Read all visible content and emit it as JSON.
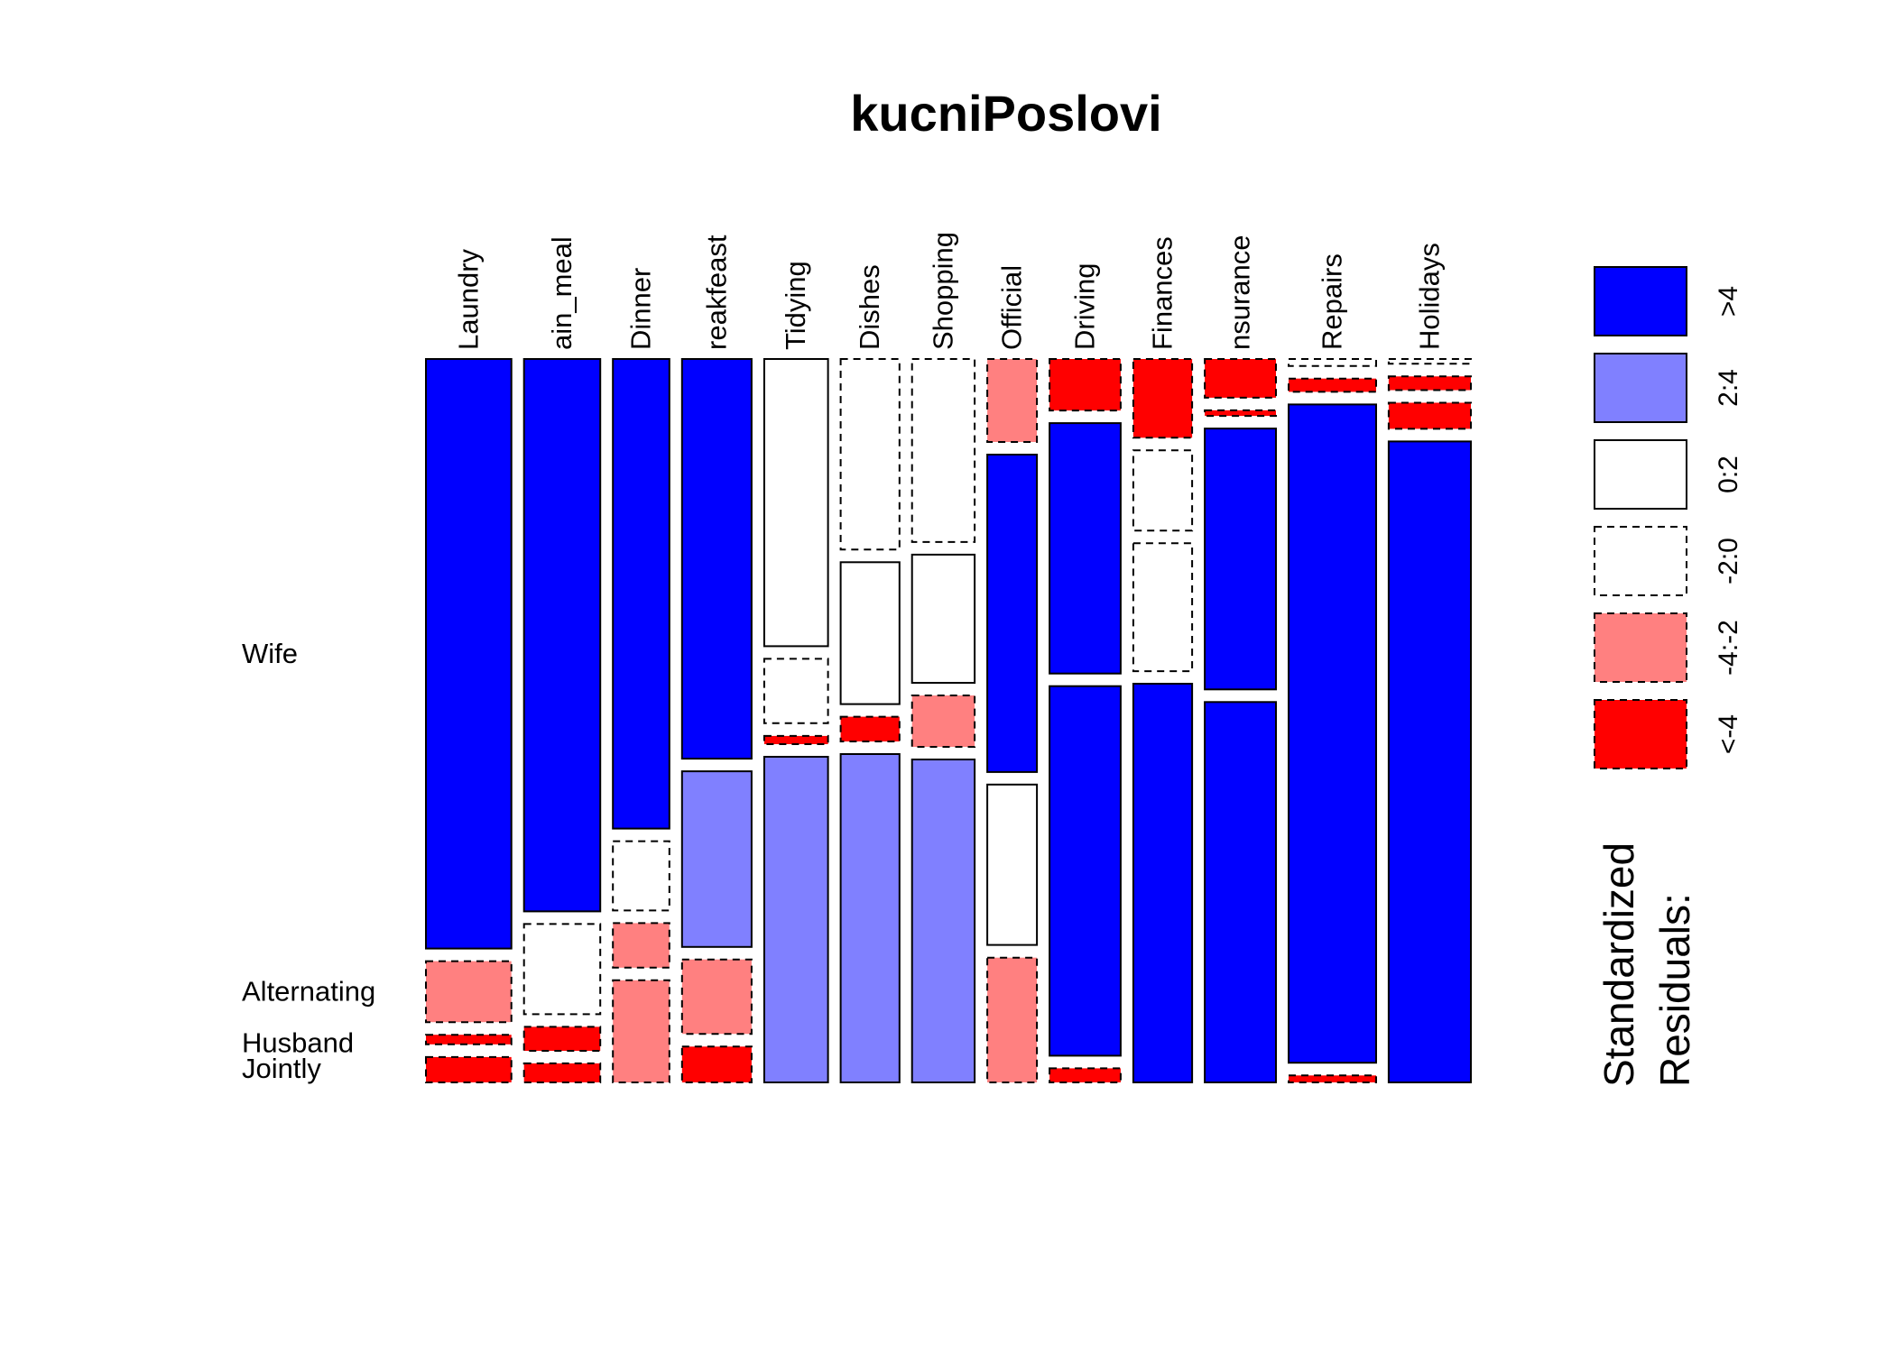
{
  "colors": {
    "gt4": "#0000ff",
    "2:4": "#8080ff",
    "0:2": "#ffffff",
    "-2:0": "#ffffff",
    "-4:-2": "#ff8080",
    "lt-4": "#ff0000"
  },
  "chart_data": {
    "type": "mosaic",
    "title": "kucniPoslovi",
    "legend": {
      "title_lines": [
        "Standardized",
        "Residuals:"
      ],
      "levels": [
        {
          "key": "gt4",
          "label": ">4",
          "dashed": false
        },
        {
          "key": "2:4",
          "label": "2:4",
          "dashed": false
        },
        {
          "key": "0:2",
          "label": "0:2",
          "dashed": false
        },
        {
          "key": "-2:0",
          "label": "-2:0",
          "dashed": true
        },
        {
          "key": "-4:-2",
          "label": "-4:-2",
          "dashed": true
        },
        {
          "key": "lt-4",
          "label": "<-4",
          "dashed": true
        }
      ],
      "placement": "right"
    },
    "row_labels": [
      "Wife",
      "Alternating",
      "Husband",
      "Jointly"
    ],
    "columns": [
      {
        "label": "Laundry",
        "display": "Laundry",
        "width_share": 0.0738,
        "cells": [
          {
            "row": "Wife",
            "share": 0.86,
            "level": "gt4"
          },
          {
            "row": "Alternating",
            "share": 0.089,
            "level": "-4:-2"
          },
          {
            "row": "Husband",
            "share": 0.014,
            "level": "lt-4"
          },
          {
            "row": "Jointly",
            "share": 0.037,
            "level": "lt-4"
          }
        ]
      },
      {
        "label": "Main_meal",
        "display": "ain_meal",
        "width_share": 0.0659,
        "cells": [
          {
            "row": "Wife",
            "share": 0.784,
            "level": "gt4"
          },
          {
            "row": "Alternating",
            "share": 0.128,
            "level": "-2:0"
          },
          {
            "row": "Husband",
            "share": 0.034,
            "level": "lt-4"
          },
          {
            "row": "Jointly",
            "share": 0.027,
            "level": "lt-4"
          }
        ]
      },
      {
        "label": "Dinner",
        "display": "Dinner",
        "width_share": 0.0488,
        "cells": [
          {
            "row": "Wife",
            "share": 0.685,
            "level": "gt4"
          },
          {
            "row": "Alternating",
            "share": 0.101,
            "level": "-2:0"
          },
          {
            "row": "Husband",
            "share": 0.065,
            "level": "-4:-2"
          },
          {
            "row": "Jointly",
            "share": 0.149,
            "level": "-4:-2"
          }
        ]
      },
      {
        "label": "Breakfeast",
        "display": "reakfeast",
        "width_share": 0.0601,
        "cells": [
          {
            "row": "Wife",
            "share": 0.569,
            "level": "gt4"
          },
          {
            "row": "Alternating",
            "share": 0.25,
            "level": "2:4"
          },
          {
            "row": "Husband",
            "share": 0.106,
            "level": "-4:-2"
          },
          {
            "row": "Jointly",
            "share": 0.051,
            "level": "lt-4"
          }
        ]
      },
      {
        "label": "Tidying",
        "display": "Tidying",
        "width_share": 0.0551,
        "cells": [
          {
            "row": "Wife",
            "share": 0.419,
            "level": "0:2"
          },
          {
            "row": "Alternating",
            "share": 0.094,
            "level": "-2:0"
          },
          {
            "row": "Husband",
            "share": 0.012,
            "level": "lt-4"
          },
          {
            "row": "Jointly",
            "share": 0.475,
            "level": "2:4"
          }
        ]
      },
      {
        "label": "Dishes",
        "display": "Dishes",
        "width_share": 0.0508,
        "cells": [
          {
            "row": "Wife",
            "share": 0.278,
            "level": "-2:0"
          },
          {
            "row": "Alternating",
            "share": 0.207,
            "level": "0:2"
          },
          {
            "row": "Husband",
            "share": 0.036,
            "level": "lt-4"
          },
          {
            "row": "Jointly",
            "share": 0.479,
            "level": "2:4"
          }
        ]
      },
      {
        "label": "Shopping",
        "display": "Shopping",
        "width_share": 0.0541,
        "cells": [
          {
            "row": "Wife",
            "share": 0.267,
            "level": "-2:0"
          },
          {
            "row": "Alternating",
            "share": 0.187,
            "level": "0:2"
          },
          {
            "row": "Husband",
            "share": 0.075,
            "level": "-4:-2"
          },
          {
            "row": "Jointly",
            "share": 0.471,
            "level": "2:4"
          }
        ]
      },
      {
        "label": "Official",
        "display": "Official",
        "width_share": 0.0429,
        "cells": [
          {
            "row": "Wife",
            "share": 0.121,
            "level": "-4:-2"
          },
          {
            "row": "Alternating",
            "share": 0.463,
            "level": "gt4"
          },
          {
            "row": "Husband",
            "share": 0.234,
            "level": "0:2"
          },
          {
            "row": "Jointly",
            "share": 0.182,
            "level": "-4:-2"
          }
        ]
      },
      {
        "label": "Driving",
        "display": "Driving",
        "width_share": 0.0614,
        "cells": [
          {
            "row": "Wife",
            "share": 0.073,
            "level": "lt-4"
          },
          {
            "row": "Alternating",
            "share": 0.355,
            "level": "gt4"
          },
          {
            "row": "Husband",
            "share": 0.524,
            "level": "gt4"
          },
          {
            "row": "Jointly",
            "share": 0.02,
            "level": "lt-4"
          }
        ]
      },
      {
        "label": "Finances",
        "display": "Finances",
        "width_share": 0.0508,
        "cells": [
          {
            "row": "Wife",
            "share": 0.112,
            "level": "lt-4"
          },
          {
            "row": "Alternating",
            "share": 0.114,
            "level": "-2:0"
          },
          {
            "row": "Husband",
            "share": 0.182,
            "level": "-2:0"
          },
          {
            "row": "Jointly",
            "share": 0.567,
            "level": "gt4"
          }
        ]
      },
      {
        "label": "Insurance",
        "display": "nsurance",
        "width_share": 0.0615,
        "cells": [
          {
            "row": "Wife",
            "share": 0.055,
            "level": "lt-4"
          },
          {
            "row": "Alternating",
            "share": 0.008,
            "level": "lt-4"
          },
          {
            "row": "Husband",
            "share": 0.371,
            "level": "gt4"
          },
          {
            "row": "Jointly",
            "share": 0.541,
            "level": "gt4"
          }
        ]
      },
      {
        "label": "Repairs",
        "display": "Repairs",
        "width_share": 0.0756,
        "cells": [
          {
            "row": "Wife",
            "share": 0.01,
            "level": "-2:0"
          },
          {
            "row": "Alternating",
            "share": 0.019,
            "level": "lt-4"
          },
          {
            "row": "Husband",
            "share": 0.944,
            "level": "gt4"
          },
          {
            "row": "Jointly",
            "share": 0.01,
            "level": "lt-4"
          }
        ]
      },
      {
        "label": "Holidays",
        "display": "Holidays",
        "width_share": 0.071,
        "cells": [
          {
            "row": "Wife",
            "share": 0.007,
            "level": "-2:0"
          },
          {
            "row": "Alternating",
            "share": 0.02,
            "level": "lt-4"
          },
          {
            "row": "Husband",
            "share": 0.038,
            "level": "lt-4"
          },
          {
            "row": "Jointly",
            "share": 0.935,
            "level": "gt4"
          }
        ]
      }
    ]
  }
}
